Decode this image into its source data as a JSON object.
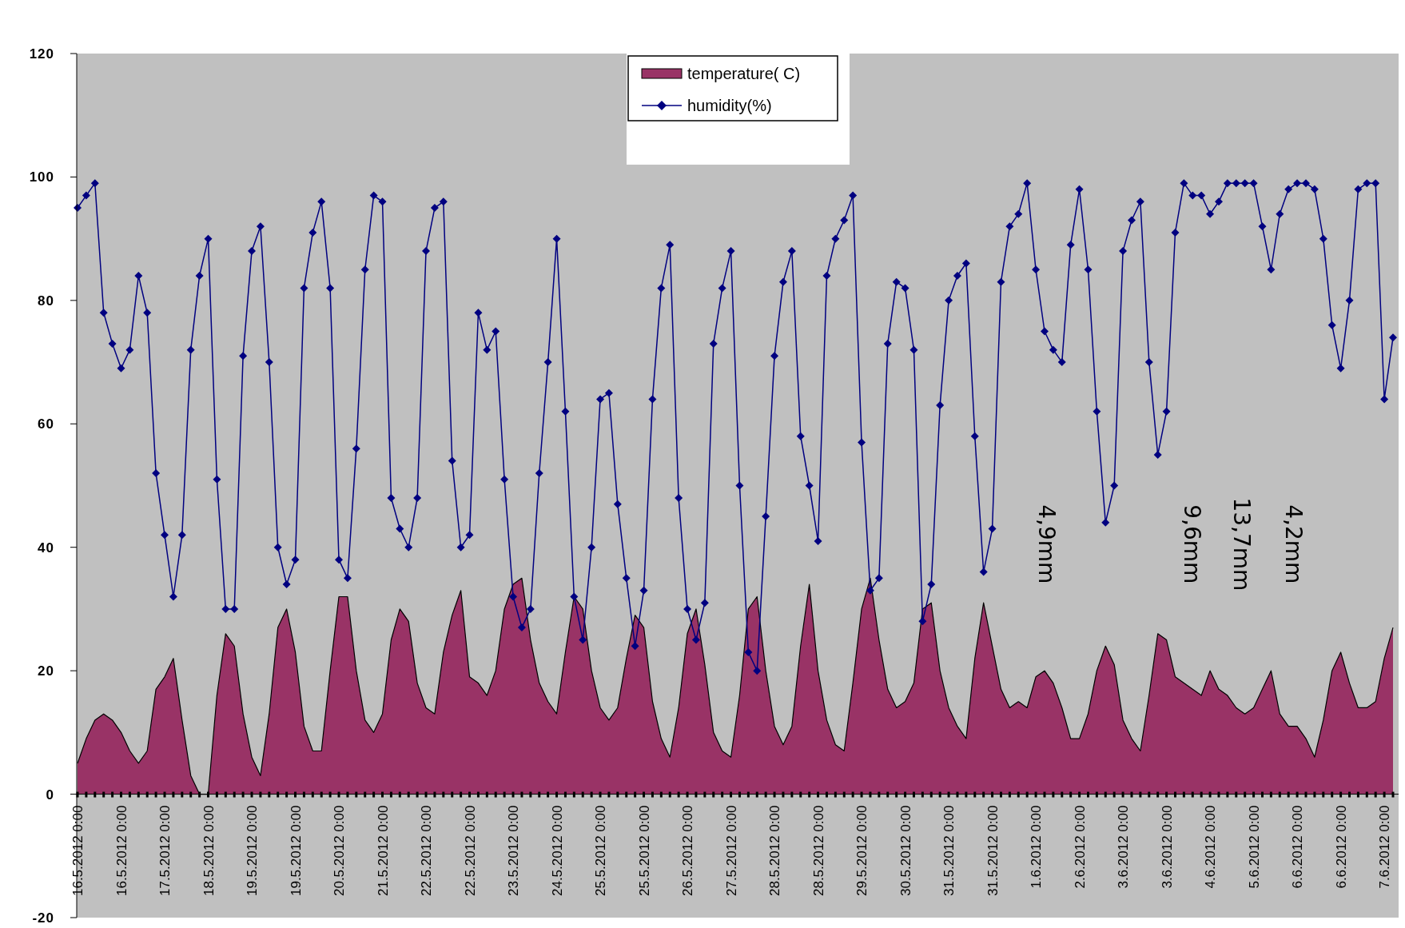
{
  "chart_data": {
    "type": "area",
    "categories": [
      "16.5.2012 0:00",
      null,
      null,
      null,
      null,
      "16.5.2012 0:00",
      null,
      null,
      null,
      null,
      "17.5.2012 0:00",
      null,
      null,
      null,
      null,
      "18.5.2012 0:00",
      null,
      null,
      null,
      null,
      "19.5.2012 0:00",
      null,
      null,
      null,
      null,
      "19.5.2012 0:00",
      null,
      null,
      null,
      null,
      "20.5.2012 0:00",
      null,
      null,
      null,
      null,
      "21.5.2012 0:00",
      null,
      null,
      null,
      null,
      "22.5.2012 0:00",
      null,
      null,
      null,
      null,
      "22.5.2012 0:00",
      null,
      null,
      null,
      null,
      "23.5.2012 0:00",
      null,
      null,
      null,
      null,
      "24.5.2012 0:00",
      null,
      null,
      null,
      null,
      "25.5.2012 0:00",
      null,
      null,
      null,
      null,
      "25.5.2012 0:00",
      null,
      null,
      null,
      null,
      "26.5.2012 0:00",
      null,
      null,
      null,
      null,
      "27.5.2012 0:00",
      null,
      null,
      null,
      null,
      "28.5.2012 0:00",
      null,
      null,
      null,
      null,
      "28.5.2012 0:00",
      null,
      null,
      null,
      null,
      "29.5.2012 0:00",
      null,
      null,
      null,
      null,
      "30.5.2012 0:00",
      null,
      null,
      null,
      null,
      "31.5.2012 0:00",
      null,
      null,
      null,
      null,
      "31.5.2012 0:00",
      null,
      null,
      null,
      null,
      "1.6.2012 0:00",
      null,
      null,
      null,
      null,
      "2.6.2012 0:00",
      null,
      null,
      null,
      null,
      "3.6.2012 0:00",
      null,
      null,
      null,
      null,
      "3.6.2012 0:00",
      null,
      null,
      null,
      null,
      "4.6.2012 0:00",
      null,
      null,
      null,
      null,
      "5.6.2012 0:00",
      null,
      null,
      null,
      null,
      "6.6.2012 0:00",
      null,
      null,
      null,
      null,
      "6.6.2012 0:00",
      null,
      null,
      null,
      null,
      "7.6.2012 0:00",
      null
    ],
    "series": [
      {
        "name": "temperature( C)",
        "color": "#993366",
        "values": [
          5,
          9,
          12,
          13,
          12,
          10,
          7,
          5,
          7,
          17,
          19,
          22,
          12,
          3,
          0,
          0,
          16,
          26,
          24,
          13,
          6,
          3,
          13,
          27,
          30,
          23,
          11,
          7,
          7,
          20,
          32,
          32,
          20,
          12,
          10,
          13,
          25,
          30,
          28,
          18,
          14,
          13,
          23,
          29,
          33,
          19,
          18,
          16,
          20,
          30,
          34,
          35,
          25,
          18,
          15,
          13,
          23,
          32,
          30,
          20,
          14,
          12,
          14,
          22,
          29,
          27,
          15,
          9,
          6,
          14,
          26,
          30,
          21,
          10,
          7,
          6,
          16,
          30,
          32,
          20,
          11,
          8,
          11,
          24,
          34,
          20,
          12,
          8,
          7,
          18,
          30,
          35,
          25,
          17,
          14,
          15,
          18,
          30,
          31,
          20,
          14,
          11,
          9,
          22,
          31,
          24,
          17,
          14,
          15,
          14,
          19,
          20,
          18,
          14,
          9,
          9,
          13,
          20,
          24,
          21,
          12,
          9,
          7,
          16,
          26,
          25,
          19,
          18,
          17,
          16,
          20,
          17,
          16,
          14,
          13,
          14,
          17,
          20,
          13,
          11,
          11,
          9,
          6,
          12,
          20,
          23,
          18,
          14,
          14,
          15,
          22,
          27
        ]
      },
      {
        "name": "humidity(%)",
        "type": "line",
        "color": "#000080",
        "marker": "diamond",
        "values": [
          95,
          97,
          99,
          78,
          73,
          69,
          72,
          84,
          78,
          52,
          42,
          32,
          42,
          72,
          84,
          90,
          51,
          30,
          30,
          71,
          88,
          92,
          70,
          40,
          34,
          38,
          82,
          91,
          96,
          82,
          38,
          35,
          56,
          85,
          97,
          96,
          48,
          43,
          40,
          48,
          88,
          95,
          96,
          54,
          40,
          42,
          78,
          72,
          75,
          51,
          32,
          27,
          30,
          52,
          70,
          90,
          62,
          32,
          25,
          40,
          64,
          65,
          47,
          35,
          24,
          33,
          64,
          82,
          89,
          48,
          30,
          25,
          31,
          73,
          82,
          88,
          50,
          23,
          20,
          45,
          71,
          83,
          88,
          58,
          50,
          41,
          84,
          90,
          93,
          97,
          57,
          33,
          35,
          73,
          83,
          82,
          72,
          28,
          34,
          63,
          80,
          84,
          86,
          58,
          36,
          43,
          83,
          92,
          94,
          99,
          85,
          75,
          72,
          70,
          89,
          98,
          85,
          62,
          44,
          50,
          88,
          93,
          96,
          70,
          55,
          62,
          91,
          99,
          97,
          97,
          94,
          96,
          99,
          99,
          99,
          99,
          92,
          85,
          94,
          98,
          99,
          99,
          98,
          90,
          76,
          69,
          80,
          98,
          99,
          99,
          64,
          74
        ]
      }
    ],
    "ylim": [
      -20,
      120
    ],
    "yticks": [
      -20,
      0,
      20,
      40,
      60,
      80,
      100,
      120
    ],
    "legend": "top",
    "annotations": [
      "4,9mm",
      "9,6mm",
      "13,7mm",
      "4,2mm"
    ]
  }
}
